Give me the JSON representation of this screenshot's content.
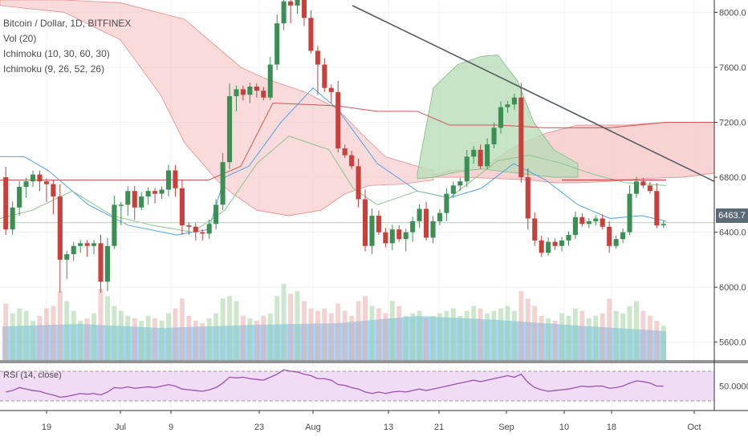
{
  "chart_data": {
    "type": "candlestick",
    "title": "Bitcoin / Dollar, 1D, BITFINEX",
    "indicators": [
      "Vol (20)",
      "Ichimoku (10, 30, 60, 30)",
      "Ichimoku (9, 26, 52, 26)"
    ],
    "rsi_label": "RSI (14, close)",
    "price_axis": [
      "8000.0",
      "7600.0",
      "7200.0",
      "6800.0",
      "6400.0",
      "6000.0",
      "5600.0"
    ],
    "rsi_axis": "50.0000",
    "last_price": "6463.7",
    "ylim": [
      5470,
      8090
    ],
    "x_labels": [
      "19",
      "Jul",
      "9",
      "23",
      "Aug",
      "13",
      "21",
      "Sep",
      "10",
      "18",
      "Oct"
    ],
    "trendline": {
      "from": [
        439,
        8050
      ],
      "to": [
        890,
        6770
      ]
    },
    "support_line": 6470,
    "candles": [
      [
        6800,
        6770,
        6420,
        6380
      ],
      [
        6420,
        6500,
        6580,
        6380
      ],
      [
        6580,
        6540,
        6730,
        6520
      ],
      [
        6730,
        6710,
        6770,
        6650
      ],
      [
        6770,
        6750,
        6820,
        6730
      ],
      [
        6820,
        6750,
        6770,
        6700
      ],
      [
        6770,
        6650,
        6750,
        6620
      ],
      [
        6750,
        6690,
        6660,
        6530
      ],
      [
        6660,
        6300,
        6200,
        5960
      ],
      [
        6200,
        6180,
        6240,
        6060
      ],
      [
        6240,
        6220,
        6300,
        6190
      ],
      [
        6300,
        6280,
        6320,
        6250
      ],
      [
        6320,
        6290,
        6300,
        6220
      ],
      [
        6300,
        6270,
        6320,
        6240
      ],
      [
        6320,
        6320,
        6040,
        5960
      ],
      [
        6040,
        6100,
        6300,
        5970
      ],
      [
        6300,
        6340,
        6600,
        6280
      ],
      [
        6600,
        6560,
        6600,
        6450
      ],
      [
        6600,
        6580,
        6700,
        6520
      ],
      [
        6700,
        6660,
        6580,
        6490
      ],
      [
        6580,
        6600,
        6660,
        6560
      ],
      [
        6660,
        6620,
        6700,
        6600
      ],
      [
        6700,
        6640,
        6680,
        6610
      ],
      [
        6680,
        6660,
        6710,
        6640
      ],
      [
        6710,
        6690,
        6850,
        6660
      ],
      [
        6850,
        6800,
        6720,
        6660
      ],
      [
        6720,
        6680,
        6450,
        6380
      ],
      [
        6450,
        6440,
        6440,
        6380
      ],
      [
        6440,
        6380,
        6400,
        6340
      ],
      [
        6400,
        6370,
        6390,
        6340
      ],
      [
        6390,
        6380,
        6460,
        6350
      ],
      [
        6460,
        6450,
        6600,
        6420
      ],
      [
        6600,
        6580,
        6910,
        6560
      ],
      [
        6910,
        6880,
        7390,
        6860
      ],
      [
        7390,
        7330,
        7440,
        7280
      ],
      [
        7440,
        7380,
        7400,
        7360
      ],
      [
        7400,
        7390,
        7460,
        7340
      ],
      [
        7460,
        7420,
        7430,
        7380
      ],
      [
        7430,
        7400,
        7380,
        7360
      ],
      [
        7380,
        7370,
        7620,
        7360
      ],
      [
        7620,
        7600,
        7920,
        7580
      ],
      [
        7920,
        7890,
        8080,
        7870
      ],
      [
        8080,
        8060,
        8050,
        7920
      ],
      [
        8050,
        8020,
        8090,
        7990
      ],
      [
        8090,
        8060,
        7960,
        7900
      ],
      [
        7960,
        7930,
        7720,
        7700
      ],
      [
        7720,
        7600,
        7620,
        7400
      ],
      [
        7620,
        7580,
        7450,
        7420
      ],
      [
        7450,
        7440,
        7420,
        7340
      ],
      [
        7420,
        7400,
        7010,
        6980
      ],
      [
        7010,
        6990,
        6960,
        6940
      ],
      [
        6960,
        6950,
        6880,
        6860
      ],
      [
        6880,
        6860,
        6640,
        6580
      ],
      [
        6640,
        6620,
        6300,
        6260
      ],
      [
        6300,
        6280,
        6520,
        6240
      ],
      [
        6520,
        6500,
        6400,
        6380
      ],
      [
        6400,
        6380,
        6320,
        6290
      ],
      [
        6320,
        6300,
        6420,
        6270
      ],
      [
        6420,
        6400,
        6350,
        6330
      ],
      [
        6350,
        6340,
        6400,
        6260
      ],
      [
        6400,
        6380,
        6480,
        6330
      ],
      [
        6480,
        6460,
        6570,
        6430
      ],
      [
        6570,
        6540,
        6360,
        6340
      ],
      [
        6360,
        6340,
        6480,
        6320
      ],
      [
        6480,
        6460,
        6540,
        6450
      ],
      [
        6540,
        6500,
        6680,
        6480
      ],
      [
        6680,
        6660,
        6740,
        6650
      ],
      [
        6740,
        6720,
        6770,
        6700
      ],
      [
        6770,
        6740,
        6950,
        6730
      ],
      [
        6950,
        6910,
        7000,
        6900
      ],
      [
        7000,
        6960,
        6880,
        6860
      ],
      [
        6880,
        6870,
        7040,
        6860
      ],
      [
        7040,
        7020,
        7160,
        7010
      ],
      [
        7160,
        7140,
        7310,
        7120
      ],
      [
        7310,
        7280,
        7330,
        7270
      ],
      [
        7330,
        7310,
        7380,
        7290
      ],
      [
        7380,
        7250,
        6800,
        6760
      ],
      [
        6800,
        6780,
        6500,
        6420
      ],
      [
        6500,
        6480,
        6340,
        6300
      ],
      [
        6340,
        6320,
        6250,
        6220
      ],
      [
        6250,
        6240,
        6330,
        6230
      ],
      [
        6330,
        6310,
        6300,
        6270
      ],
      [
        6300,
        6290,
        6340,
        6260
      ],
      [
        6340,
        6330,
        6380,
        6300
      ],
      [
        6380,
        6370,
        6510,
        6350
      ],
      [
        6510,
        6490,
        6460,
        6440
      ],
      [
        6460,
        6450,
        6480,
        6430
      ],
      [
        6480,
        6470,
        6500,
        6450
      ],
      [
        6500,
        6480,
        6440,
        6420
      ],
      [
        6440,
        6420,
        6300,
        6250
      ],
      [
        6300,
        6290,
        6350,
        6280
      ],
      [
        6350,
        6340,
        6400,
        6320
      ],
      [
        6400,
        6390,
        6680,
        6380
      ],
      [
        6680,
        6660,
        6770,
        6650
      ],
      [
        6770,
        6750,
        6740,
        6720
      ],
      [
        6740,
        6720,
        6700,
        6680
      ],
      [
        6700,
        6690,
        6450,
        6430
      ],
      [
        6450,
        6440,
        6460,
        6430
      ]
    ],
    "volume": [
      23,
      19,
      21,
      20,
      16,
      18,
      21,
      22,
      28,
      24,
      20,
      16,
      17,
      19,
      29,
      26,
      22,
      20,
      18,
      17,
      16,
      18,
      17,
      16,
      19,
      21,
      25,
      18,
      16,
      15,
      17,
      19,
      25,
      26,
      24,
      18,
      17,
      16,
      18,
      19,
      26,
      31,
      27,
      28,
      24,
      21,
      20,
      21,
      19,
      23,
      20,
      18,
      24,
      26,
      22,
      21,
      19,
      24,
      22,
      18,
      19,
      20,
      17,
      18,
      19,
      20,
      21,
      18,
      20,
      22,
      21,
      19,
      20,
      21,
      22,
      20,
      28,
      25,
      22,
      18,
      17,
      16,
      19,
      18,
      21,
      20,
      17,
      18,
      19,
      25,
      20,
      19,
      22,
      24,
      20,
      18,
      16,
      14
    ],
    "rsi": [
      42,
      44,
      48,
      46,
      44,
      43,
      40,
      38,
      35,
      36,
      38,
      40,
      39,
      40,
      38,
      42,
      48,
      47,
      49,
      47,
      48,
      49,
      48,
      50,
      52,
      50,
      46,
      45,
      44,
      43,
      45,
      48,
      54,
      62,
      61,
      62,
      60,
      59,
      58,
      62,
      66,
      72,
      70,
      69,
      66,
      64,
      60,
      60,
      58,
      52,
      51,
      48,
      46,
      42,
      40,
      42,
      40,
      42,
      43,
      42,
      44,
      46,
      44,
      46,
      48,
      50,
      52,
      54,
      56,
      58,
      56,
      58,
      60,
      62,
      64,
      62,
      66,
      55,
      48,
      45,
      43,
      44,
      45,
      46,
      48,
      50,
      49,
      50,
      50,
      47,
      48,
      50,
      54,
      57,
      56,
      54,
      50,
      50
    ]
  }
}
